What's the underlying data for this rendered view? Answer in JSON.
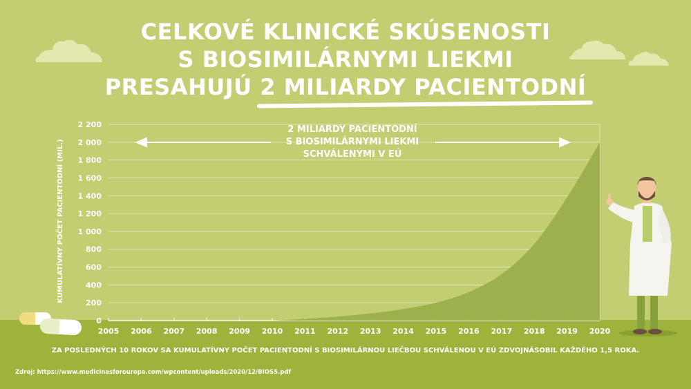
{
  "headline": {
    "line1": "CELKOVÉ KLINICKÉ SKÚSENOSTI",
    "line2": "S BIOSIMILÁRNYMI LIEKMI",
    "line3_prefix": "PRESAHUJÚ ",
    "line3_highlight": "2 MILIARDY PACIENTODNÍ"
  },
  "annotation": {
    "line1": "2 MILIARDY PACIENTODNÍ",
    "line2": "S BIOSIMILÁRNYMI LIEKMI",
    "line3": "SCHVÁLENÝMI V EÚ"
  },
  "footnote": "ZA POSLEDNÝCH 10 ROKOV SA KUMULATÍVNY POČET PACIENTODNÍ S BIOSIMILÁRNOU LIEČBOU  SCHVÁLENOU V EÚ ZDVOJNÁSOBIL KAŽDÉHO 1,5 ROKA.",
  "source": "Zdroj: https://www.medicinesforeurope.com/wpcontent/uploads/2020/12/BIOS5.pdf",
  "colors": {
    "background": "#c3cd72",
    "ground": "#9db33c",
    "area": "#9aae4c",
    "text": "#ffffff"
  },
  "chart_data": {
    "type": "area",
    "ylabel": "KUMULATÍVNY POČET PACIENTODNÍ (MIL.)",
    "xlabel": "",
    "x": [
      2005,
      2006,
      2007,
      2008,
      2009,
      2010,
      2011,
      2012,
      2013,
      2014,
      2015,
      2016,
      2017,
      2018,
      2019,
      2020
    ],
    "y_ticks": [
      "0",
      "200",
      "400",
      "600",
      "800",
      "1 000",
      "1 200",
      "1 400",
      "1 600",
      "1 800",
      "2 000",
      "2 200"
    ],
    "xlim": [
      2005,
      2020
    ],
    "ylim": [
      0,
      2200
    ],
    "grid": true,
    "series": [
      {
        "values": [
          0,
          0,
          0,
          0,
          0,
          0,
          20,
          45,
          80,
          130,
          200,
          320,
          520,
          860,
          1380,
          2000
        ]
      }
    ]
  }
}
